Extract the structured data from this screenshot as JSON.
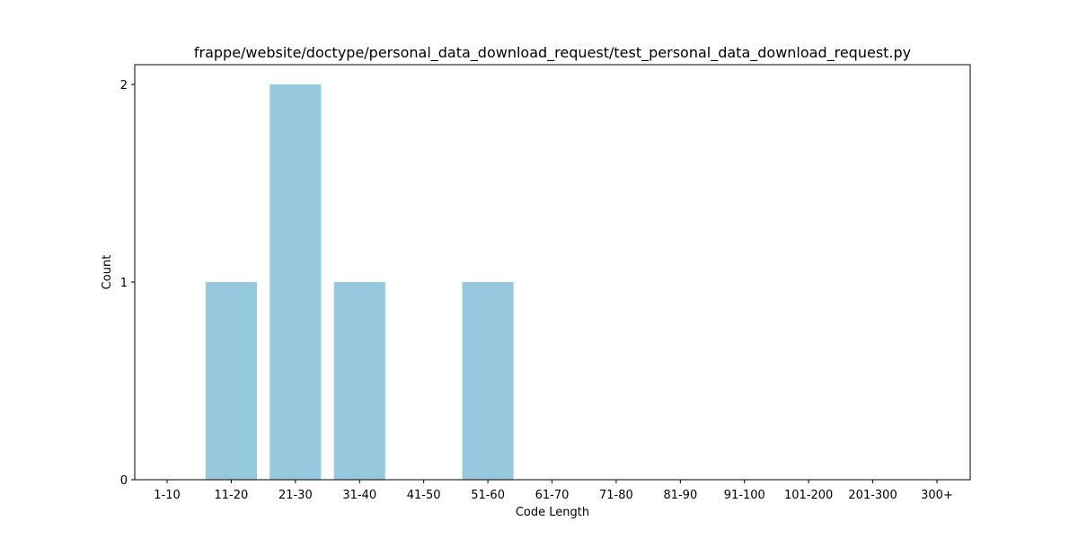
{
  "chart_data": {
    "type": "bar",
    "title": "frappe/website/doctype/personal_data_download_request/test_personal_data_download_request.py",
    "xlabel": "Code Length",
    "ylabel": "Count",
    "categories": [
      "1-10",
      "11-20",
      "21-30",
      "31-40",
      "41-50",
      "51-60",
      "61-70",
      "71-80",
      "81-90",
      "91-100",
      "101-200",
      "201-300",
      "300+"
    ],
    "values": [
      0,
      1,
      2,
      1,
      0,
      1,
      0,
      0,
      0,
      0,
      0,
      0,
      0
    ],
    "yticks": [
      "0",
      "1",
      "2"
    ],
    "ylim": [
      0,
      2.1
    ],
    "grid": false,
    "legend": "none",
    "bar_color": "#96c9de"
  }
}
